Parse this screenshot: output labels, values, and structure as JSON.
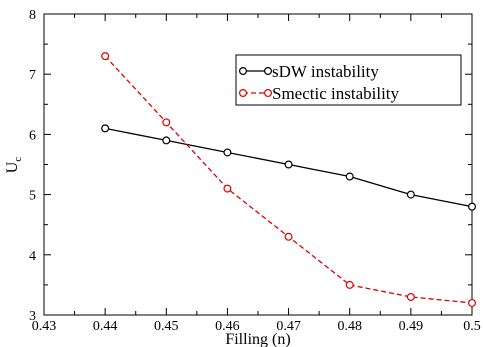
{
  "chart_data": {
    "type": "line",
    "title": "",
    "xlabel": "Filling (n)",
    "ylabel_main": "U",
    "ylabel_sub": "c",
    "xlim": [
      0.43,
      0.5
    ],
    "ylim": [
      3,
      8
    ],
    "xticks": [
      "0.43",
      "0.44",
      "0.45",
      "0.46",
      "0.47",
      "0.48",
      "0.49",
      "0.5"
    ],
    "yticks": [
      "3",
      "4",
      "5",
      "6",
      "7",
      "8"
    ],
    "grid": false,
    "legend_position": "top-right",
    "series": [
      {
        "name": "sDW instability",
        "color": "#000000",
        "line_style": "solid",
        "marker": "open-circle",
        "x": [
          0.44,
          0.45,
          0.46,
          0.47,
          0.48,
          0.49,
          0.5
        ],
        "y": [
          6.1,
          5.9,
          5.7,
          5.5,
          5.3,
          5.0,
          4.8
        ]
      },
      {
        "name": "Smectic instability",
        "color": "#e00000",
        "line_style": "dashed",
        "marker": "open-circle",
        "x": [
          0.44,
          0.45,
          0.46,
          0.47,
          0.48,
          0.49,
          0.5
        ],
        "y": [
          7.3,
          6.2,
          5.1,
          4.3,
          3.5,
          3.3,
          3.2
        ]
      }
    ]
  }
}
